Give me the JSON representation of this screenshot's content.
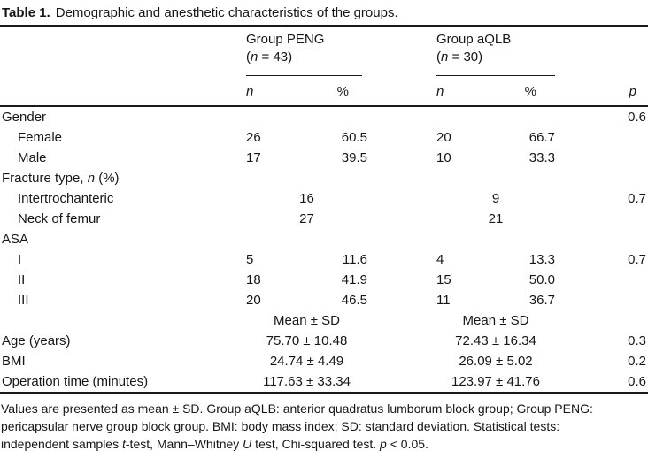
{
  "title": {
    "label": "Table 1.",
    "caption": "Demographic and anesthetic characteristics of the groups."
  },
  "columns": {
    "group1": {
      "name": "Group PENG",
      "count": "(*n* = 43)"
    },
    "group2": {
      "name": "Group aQLB",
      "count": "(*n* = 30)"
    },
    "sub": {
      "n": "*n*",
      "pct": "%",
      "p": "*p*"
    }
  },
  "rows": [
    {
      "label": "Gender",
      "indent": false,
      "type": "label",
      "p": "0.6"
    },
    {
      "label": "Female",
      "indent": true,
      "type": "np",
      "n1": "26",
      "pct1": "60.5",
      "n2": "20",
      "pct2": "66.7",
      "p": ""
    },
    {
      "label": "Male",
      "indent": true,
      "type": "np",
      "n1": "17",
      "pct1": "39.5",
      "n2": "10",
      "pct2": "33.3",
      "p": ""
    },
    {
      "label": "Fracture type, *n* (%)",
      "indent": false,
      "type": "label",
      "p": ""
    },
    {
      "label": "Intertrochanteric",
      "indent": true,
      "type": "span",
      "c1": "16",
      "c2": "9",
      "p": "0.7"
    },
    {
      "label": "Neck of femur",
      "indent": true,
      "type": "span",
      "c1": "27",
      "c2": "21",
      "p": ""
    },
    {
      "label": "ASA",
      "indent": false,
      "type": "label",
      "p": ""
    },
    {
      "label": "I",
      "indent": true,
      "type": "np",
      "n1": "5",
      "pct1": "11.6",
      "n2": "4",
      "pct2": "13.3",
      "p": "0.7"
    },
    {
      "label": "II",
      "indent": true,
      "type": "np",
      "n1": "18",
      "pct1": "41.9",
      "n2": "15",
      "pct2": "50.0",
      "p": ""
    },
    {
      "label": "III",
      "indent": true,
      "type": "np",
      "n1": "20",
      "pct1": "46.5",
      "n2": "11",
      "pct2": "36.7",
      "p": ""
    },
    {
      "label": "",
      "indent": false,
      "type": "span",
      "c1": "Mean ± SD",
      "c2": "Mean ± SD",
      "p": ""
    },
    {
      "label": "Age (years)",
      "indent": false,
      "type": "span",
      "c1": "75.70 ± 10.48",
      "c2": "72.43 ± 16.34",
      "p": "0.3"
    },
    {
      "label": "BMI",
      "indent": false,
      "type": "span",
      "c1": "24.74 ± 4.49",
      "c2": "26.09 ± 5.02",
      "p": "0.2"
    },
    {
      "label": "Operation time (minutes)",
      "indent": false,
      "type": "span",
      "c1": "117.63 ± 33.34",
      "c2": "123.97 ± 41.76",
      "p": "0.6"
    }
  ],
  "footnote": {
    "lines": [
      "Values are presented as mean ± SD. Group aQLB: anterior quadratus lumborum block group; Group PENG:",
      "pericapsular nerve group block group. BMI: body mass index; SD: standard deviation. Statistical tests:",
      "independent samples *t*-test, Mann–Whitney *U* test, Chi-squared test. *p* < 0.05."
    ]
  }
}
